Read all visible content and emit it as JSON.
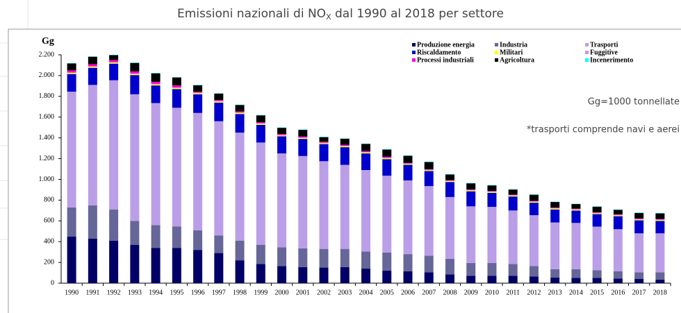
{
  "chart_data": {
    "type": "stacked_bar",
    "title": [
      "Emissioni nazionali di NO",
      "X",
      " dal 1990 al 2018 per settore"
    ],
    "y_label": "Gg",
    "annotations": [
      "Gg=1000 tonnellate",
      "*trasporti comprende navi e aerei"
    ],
    "categories": [
      "1990",
      "1991",
      "1992",
      "1993",
      "1994",
      "1995",
      "1996",
      "1997",
      "1998",
      "1999",
      "2000",
      "2001",
      "2002",
      "2003",
      "2004",
      "2005",
      "2006",
      "2007",
      "2008",
      "2009",
      "2010",
      "2011",
      "2012",
      "2013",
      "2014",
      "2015",
      "2016",
      "2017",
      "2018"
    ],
    "series": [
      {
        "name": "Produzione energia",
        "color": "#000066",
        "values": [
          450,
          430,
          410,
          370,
          340,
          340,
          320,
          290,
          220,
          185,
          165,
          155,
          150,
          155,
          140,
          120,
          115,
          105,
          85,
          70,
          70,
          70,
          65,
          55,
          50,
          50,
          45,
          40,
          35
        ]
      },
      {
        "name": "Industria",
        "color": "#666699",
        "values": [
          280,
          320,
          300,
          230,
          220,
          205,
          190,
          170,
          190,
          185,
          180,
          180,
          180,
          175,
          165,
          175,
          165,
          160,
          150,
          125,
          125,
          115,
          100,
          80,
          85,
          75,
          70,
          65,
          70
        ]
      },
      {
        "name": "Trasporti",
        "color": "#bb9ee8",
        "values": [
          1115,
          1160,
          1245,
          1220,
          1175,
          1145,
          1130,
          1100,
          1040,
          985,
          905,
          890,
          845,
          810,
          785,
          740,
          710,
          670,
          595,
          545,
          540,
          515,
          490,
          450,
          445,
          420,
          405,
          375,
          375
        ]
      },
      {
        "name": "Riscaldamento",
        "color": "#0000cc",
        "values": [
          170,
          165,
          160,
          185,
          170,
          180,
          180,
          180,
          180,
          170,
          165,
          165,
          165,
          170,
          160,
          160,
          150,
          145,
          145,
          145,
          135,
          135,
          120,
          125,
          120,
          120,
          125,
          125,
          120
        ]
      },
      {
        "name": "Militari",
        "color": "#ffff00",
        "values": [
          10,
          10,
          10,
          10,
          10,
          10,
          10,
          10,
          10,
          10,
          8,
          8,
          8,
          8,
          8,
          8,
          8,
          8,
          8,
          8,
          8,
          8,
          8,
          8,
          8,
          8,
          8,
          8,
          8
        ]
      },
      {
        "name": "Fuggitive",
        "color": "#cc99cc",
        "values": [
          5,
          5,
          5,
          5,
          5,
          5,
          5,
          5,
          5,
          5,
          5,
          5,
          5,
          5,
          5,
          5,
          5,
          5,
          5,
          5,
          5,
          5,
          5,
          5,
          5,
          5,
          5,
          5,
          5
        ]
      },
      {
        "name": "Processi industriali",
        "color": "#ff00cc",
        "values": [
          20,
          20,
          20,
          20,
          20,
          20,
          10,
          10,
          10,
          10,
          10,
          10,
          10,
          10,
          10,
          10,
          5,
          5,
          5,
          5,
          5,
          5,
          5,
          5,
          5,
          5,
          5,
          5,
          5
        ]
      },
      {
        "name": "Agricoltura",
        "color": "#000000",
        "values": [
          67,
          72,
          47,
          82,
          82,
          77,
          62,
          62,
          62,
          67,
          59,
          64,
          44,
          59,
          69,
          69,
          69,
          69,
          54,
          59,
          54,
          49,
          59,
          54,
          44,
          54,
          44,
          54,
          54
        ]
      },
      {
        "name": "Incenerimento",
        "color": "#00ffff",
        "values": [
          3,
          3,
          3,
          3,
          3,
          3,
          3,
          3,
          3,
          3,
          3,
          3,
          3,
          3,
          3,
          3,
          3,
          3,
          3,
          3,
          3,
          3,
          3,
          3,
          3,
          3,
          3,
          3,
          3
        ]
      }
    ],
    "ylim": [
      0,
      2200
    ],
    "yticks": [
      0,
      200,
      400,
      600,
      800,
      {
        "value": 1000,
        "label": "1.000"
      },
      {
        "value": 1200,
        "label": "1.200"
      },
      {
        "value": 1400,
        "label": "1.400"
      },
      {
        "value": 1600,
        "label": "1.600"
      },
      {
        "value": 1800,
        "label": "1.800"
      },
      {
        "value": 2000,
        "label": "2.000"
      },
      {
        "value": 2200,
        "label": "2.200"
      }
    ],
    "grid": false
  }
}
